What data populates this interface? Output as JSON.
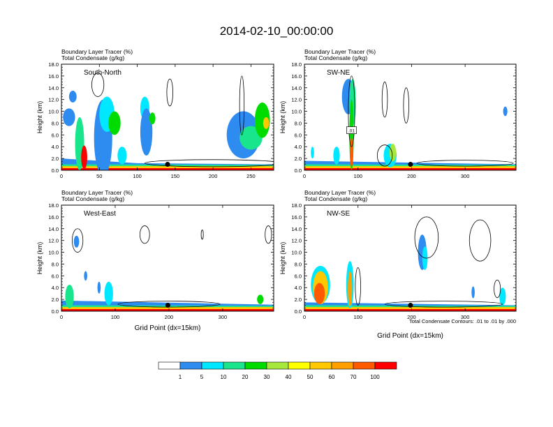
{
  "title": "2014-02-10_00:00:00",
  "contour_note": "Total Condensate Contours: .01 to .01 by .000",
  "contour_label": ".01",
  "colorbar": {
    "colors": [
      "#ffffff",
      "#2e8cf0",
      "#00e8ff",
      "#19e68c",
      "#00dc00",
      "#a6e83c",
      "#ffff00",
      "#ffc800",
      "#ffa000",
      "#ff5a00",
      "#ff0000"
    ],
    "labels": [
      "1",
      "5",
      "10",
      "20",
      "30",
      "40",
      "50",
      "60",
      "70",
      "100"
    ]
  },
  "chart_data": [
    {
      "type": "heatmap",
      "panel": "top-left",
      "label": "South-North",
      "title_lines": [
        "Boundary Layer Tracer   (%)",
        "Total Condensate   (g/kg)"
      ],
      "ylabel": "Height (km)",
      "xlabel": "",
      "xlim": [
        0,
        280
      ],
      "ylim": [
        0,
        18
      ],
      "xticks": [
        0,
        50,
        100,
        150,
        200,
        250
      ],
      "yticks": [
        "0.0",
        "2.0",
        "4.0",
        "6.0",
        "8.0",
        "10.0",
        "12.0",
        "14.0",
        "16.0",
        "18.0"
      ],
      "marker": {
        "x": 140,
        "y": 1.0
      }
    },
    {
      "type": "heatmap",
      "panel": "top-right",
      "label": "SW-NE",
      "title_lines": [
        "Boundary Layer Tracer   (%)",
        "Total Condensate   (g/kg)"
      ],
      "ylabel": "Height (km)",
      "xlabel": "",
      "xlim": [
        0,
        395
      ],
      "ylim": [
        0,
        18
      ],
      "xticks": [
        0,
        100,
        200,
        300
      ],
      "yticks": [
        "0.0",
        "2.0",
        "4.0",
        "6.0",
        "8.0",
        "10.0",
        "12.0",
        "14.0",
        "16.0",
        "18.0"
      ],
      "marker": {
        "x": 198,
        "y": 1.0
      }
    },
    {
      "type": "heatmap",
      "panel": "bottom-left",
      "label": "West-East",
      "title_lines": [
        "Boundary Layer Tracer   (%)",
        "Total Condensate   (g/kg)"
      ],
      "ylabel": "Height (km)",
      "xlabel": "Grid Point (dx=15km)",
      "xlim": [
        0,
        395
      ],
      "ylim": [
        0,
        18
      ],
      "xticks": [
        0,
        100,
        200,
        300
      ],
      "yticks": [
        "0.0",
        "2.0",
        "4.0",
        "6.0",
        "8.0",
        "10.0",
        "12.0",
        "14.0",
        "16.0",
        "18.0"
      ],
      "marker": {
        "x": 198,
        "y": 1.0
      }
    },
    {
      "type": "heatmap",
      "panel": "bottom-right",
      "label": "NW-SE",
      "title_lines": [
        "Boundary Layer Tracer   (%)",
        "Total Condensate   (g/kg)"
      ],
      "ylabel": "Height (km)",
      "xlabel": "Grid Point (dx=15km)",
      "xlim": [
        0,
        395
      ],
      "ylim": [
        0,
        18
      ],
      "xticks": [
        0,
        100,
        200,
        300
      ],
      "yticks": [
        "0.0",
        "2.0",
        "4.0",
        "6.0",
        "8.0",
        "10.0",
        "12.0",
        "14.0",
        "16.0",
        "18.0"
      ],
      "marker": {
        "x": 198,
        "y": 1.0
      }
    }
  ]
}
